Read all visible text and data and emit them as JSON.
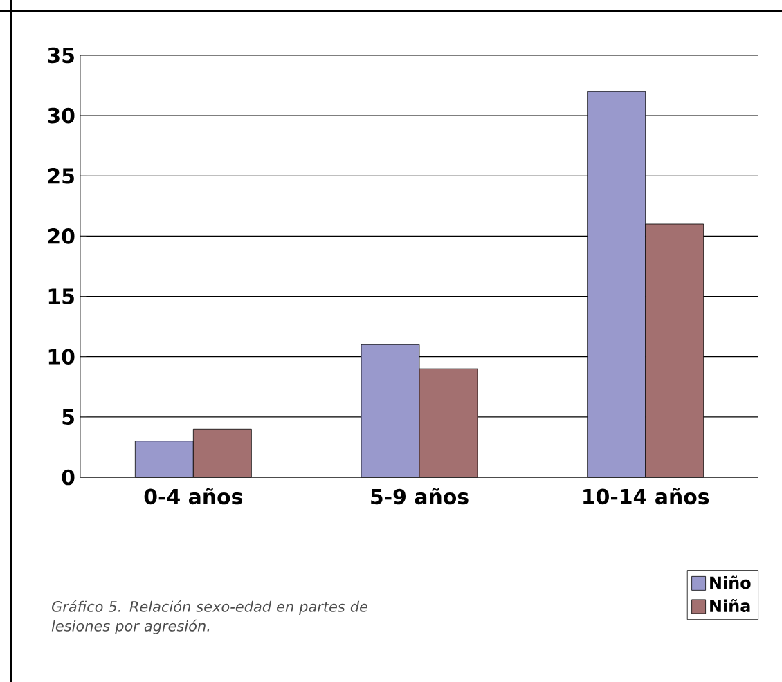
{
  "chart_data": {
    "type": "bar",
    "categories": [
      "0-4 años",
      "5-9 años",
      "10-14 años"
    ],
    "series": [
      {
        "name": "Niño",
        "color": "#9999cc",
        "values": [
          3,
          11,
          32
        ]
      },
      {
        "name": "Niña",
        "color": "#a37070",
        "values": [
          4,
          9,
          21
        ]
      }
    ],
    "ylim": [
      0,
      35
    ],
    "yticks": [
      0,
      5,
      10,
      15,
      20,
      25,
      30,
      35
    ],
    "grid": "y",
    "legend": "bottom right",
    "annotations": [
      "Gráfico 5. Relación sexo-edad en partes de lesiones por agresión."
    ]
  }
}
